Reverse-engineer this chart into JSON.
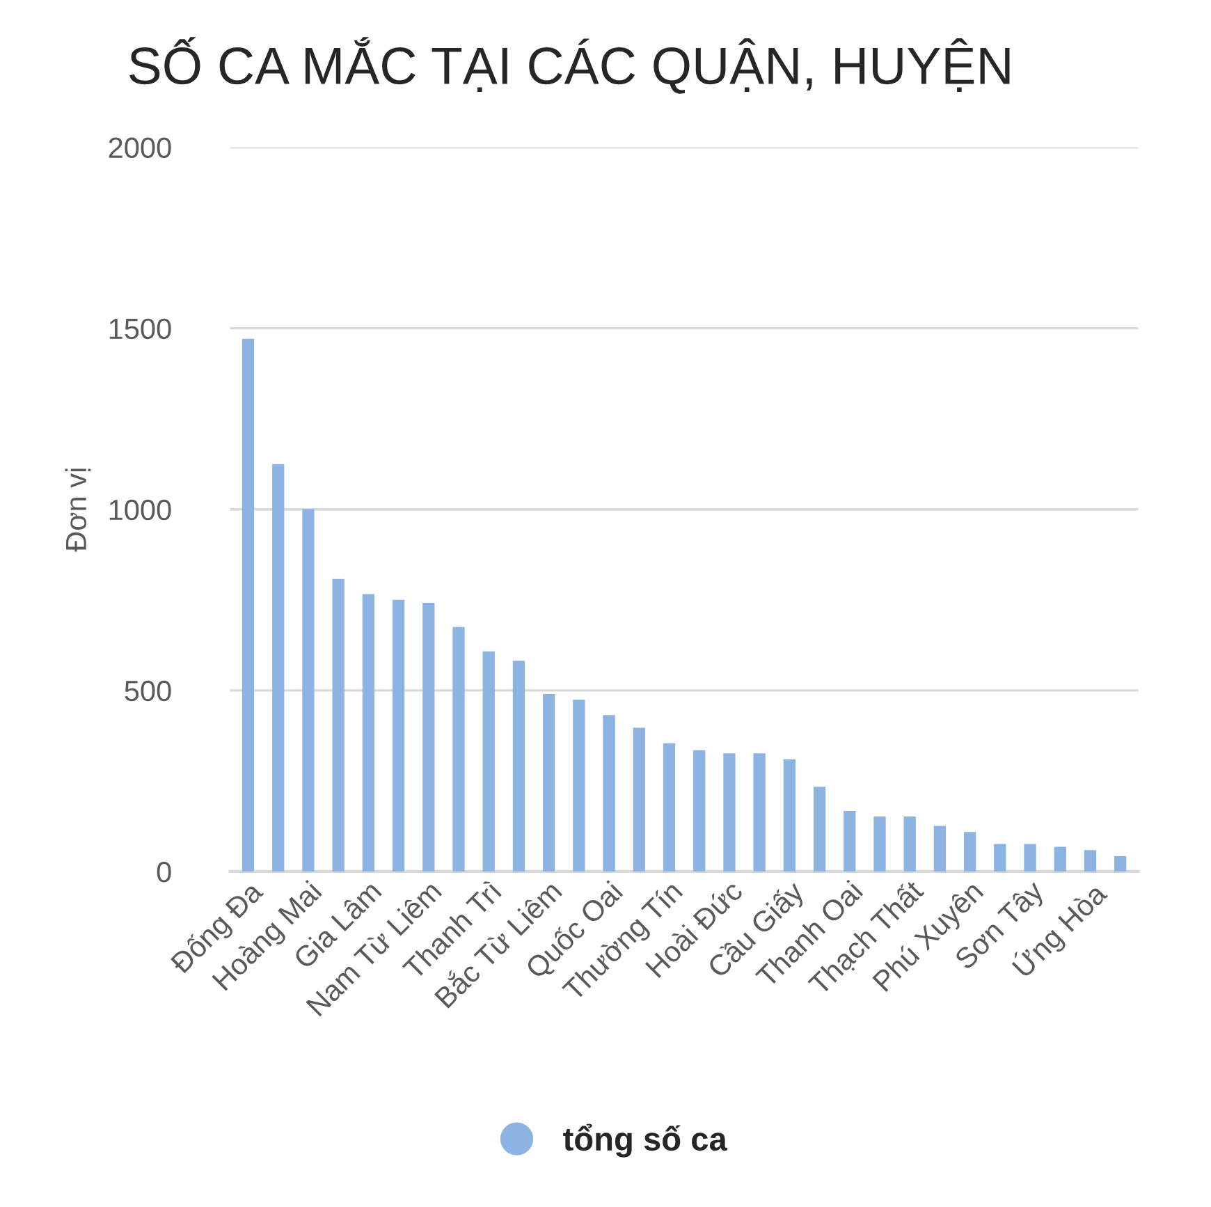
{
  "chart_data": {
    "type": "bar",
    "title": "SỐ CA MẮC TẠI CÁC QUẬN, HUYỆN",
    "ylabel": "Đơn vị",
    "categories": [
      "Đống Đa",
      null,
      "Hoàng Mai",
      null,
      "Gia Lâm",
      null,
      "Nam Từ Liêm",
      null,
      "Thanh Trì",
      null,
      "Bắc Từ Liêm",
      null,
      "Quốc Oai",
      null,
      "Thường Tín",
      null,
      "Hoài Đức",
      null,
      "Cầu Giấy",
      null,
      "Thanh Oai",
      null,
      "Thạch Thất",
      null,
      "Phú Xuyên",
      null,
      "Sơn Tây",
      null,
      "Ứng Hòa",
      null
    ],
    "series": [
      {
        "name": "tổng số ca",
        "color": "#8db3e2",
        "values": [
          1471,
          1125,
          1001,
          808,
          766,
          750,
          742,
          675,
          608,
          582,
          490,
          474,
          432,
          397,
          354,
          335,
          326,
          326,
          310,
          234,
          167,
          152,
          152,
          126,
          109,
          76,
          76,
          68,
          59,
          42
        ]
      }
    ],
    "ylim": [
      0,
      2000
    ],
    "yticks": [
      0,
      500,
      1000,
      1500,
      2000
    ],
    "grid": "y",
    "legend": "bottom"
  }
}
